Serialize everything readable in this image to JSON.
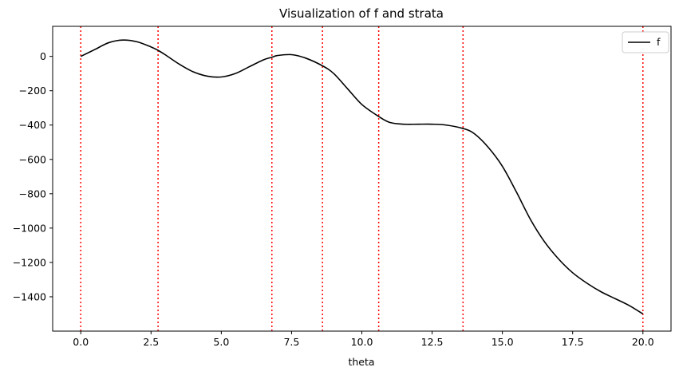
{
  "chart_data": {
    "type": "line",
    "title": "Visualization of f and strata",
    "xlabel": "theta",
    "ylabel": "",
    "xlim": [
      -1.0,
      21.0
    ],
    "ylim": [
      -1600,
      175
    ],
    "xticks": [
      0.0,
      2.5,
      5.0,
      7.5,
      10.0,
      12.5,
      15.0,
      17.5,
      20.0
    ],
    "xtick_labels": [
      "0.0",
      "2.5",
      "5.0",
      "7.5",
      "10.0",
      "12.5",
      "15.0",
      "17.5",
      "20.0"
    ],
    "yticks": [
      0,
      -200,
      -400,
      -600,
      -800,
      -1000,
      -1200,
      -1400
    ],
    "ytick_labels": [
      "0",
      "−200",
      "−400",
      "−600",
      "−800",
      "−1000",
      "−1200",
      "−1400"
    ],
    "series": [
      {
        "name": "f",
        "color": "#000000",
        "x": [
          0.0,
          0.5,
          1.0,
          1.5,
          2.0,
          2.5,
          2.75,
          3.0,
          3.5,
          4.0,
          4.5,
          5.0,
          5.5,
          6.0,
          6.5,
          6.8,
          7.0,
          7.5,
          8.0,
          8.6,
          9.0,
          9.5,
          10.0,
          10.6,
          11.0,
          11.5,
          12.0,
          12.5,
          13.0,
          13.6,
          14.0,
          14.5,
          15.0,
          15.5,
          16.0,
          16.5,
          17.0,
          17.5,
          18.0,
          18.5,
          19.0,
          19.5,
          20.0
        ],
        "y": [
          0,
          40,
          80,
          95,
          85,
          55,
          35,
          10,
          -45,
          -90,
          -115,
          -120,
          -100,
          -60,
          -20,
          -5,
          5,
          10,
          -10,
          -55,
          -100,
          -190,
          -280,
          -350,
          -385,
          -395,
          -395,
          -395,
          -400,
          -420,
          -450,
          -530,
          -640,
          -790,
          -950,
          -1080,
          -1180,
          -1260,
          -1320,
          -1370,
          -1410,
          -1450,
          -1500
        ]
      }
    ],
    "strata": {
      "color": "#ff0000",
      "style": "dotted",
      "x": [
        0.0,
        2.75,
        6.8,
        8.6,
        10.6,
        13.6,
        20.0
      ]
    },
    "legend": {
      "placement": "top-right",
      "entries": [
        "f"
      ]
    },
    "grid": false
  }
}
